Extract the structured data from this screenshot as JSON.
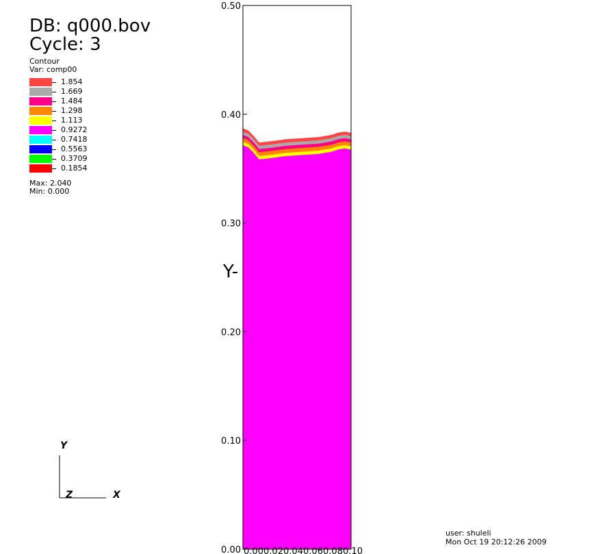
{
  "header": {
    "db": "DB: q000.bov",
    "cycle": "Cycle: 3"
  },
  "legend": {
    "plot_type": "Contour",
    "var": "Var: comp00",
    "levels": [
      {
        "label": "1.854",
        "color": "#ff4444"
      },
      {
        "label": "1.669",
        "color": "#aaaaaa"
      },
      {
        "label": "1.484",
        "color": "#ff0088"
      },
      {
        "label": "1.298",
        "color": "#ff8800"
      },
      {
        "label": "1.113",
        "color": "#ffff00"
      },
      {
        "label": "0.9272",
        "color": "#ff00ff"
      },
      {
        "label": "0.7418",
        "color": "#00ffff"
      },
      {
        "label": "0.5563",
        "color": "#0000ff"
      },
      {
        "label": "0.3709",
        "color": "#00ff00"
      },
      {
        "label": "0.1854",
        "color": "#ff0000"
      }
    ],
    "max": "Max: 2.040",
    "min": "Min: 0.000"
  },
  "chart_data": {
    "type": "heatmap",
    "ylabel": "Y-",
    "ylim": [
      0.0,
      0.5
    ],
    "y_ticks": [
      "0.00",
      "0.10",
      "0.20",
      "0.30",
      "0.40",
      "0.50"
    ],
    "x_tick_labels": "0.000.020.040.060.080.10",
    "interface": {
      "x": [
        0.0,
        0.05,
        0.1,
        0.15,
        0.25,
        0.4,
        0.55,
        0.7,
        0.82,
        0.88,
        0.94,
        1.0
      ],
      "y": [
        0.387,
        0.385,
        0.38,
        0.374,
        0.375,
        0.377,
        0.378,
        0.379,
        0.381,
        0.383,
        0.384,
        0.383
      ]
    },
    "bands": [
      {
        "color": "#ff4444",
        "offset": 0
      },
      {
        "color": "#aaaaaa",
        "offset": 0.003
      },
      {
        "color": "#ff0088",
        "offset": 0.006
      },
      {
        "color": "#ff8800",
        "offset": 0.009
      },
      {
        "color": "#ffff00",
        "offset": 0.0125
      },
      {
        "color": "#ff00ff",
        "offset": 0.0155
      }
    ]
  },
  "triad": {
    "y": "Y",
    "z": "Z",
    "x": "X"
  },
  "footer": {
    "user": "user: shuleli",
    "date": "Mon Oct 19 20:12:26 2009"
  }
}
